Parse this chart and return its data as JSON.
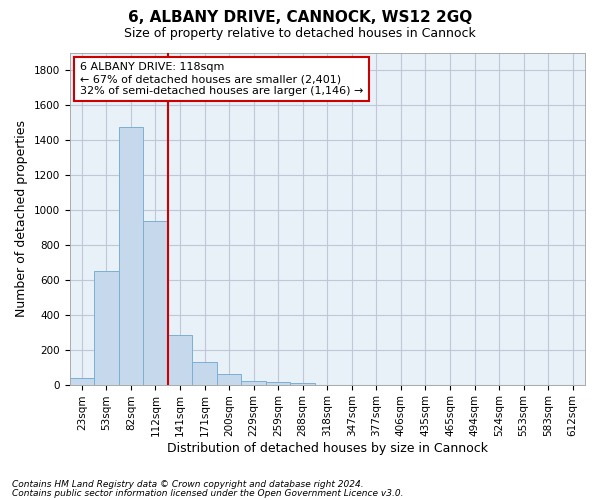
{
  "title": "6, ALBANY DRIVE, CANNOCK, WS12 2GQ",
  "subtitle": "Size of property relative to detached houses in Cannock",
  "xlabel": "Distribution of detached houses by size in Cannock",
  "ylabel": "Number of detached properties",
  "footnote1": "Contains HM Land Registry data © Crown copyright and database right 2024.",
  "footnote2": "Contains public sector information licensed under the Open Government Licence v3.0.",
  "categories": [
    "23sqm",
    "53sqm",
    "82sqm",
    "112sqm",
    "141sqm",
    "171sqm",
    "200sqm",
    "229sqm",
    "259sqm",
    "288sqm",
    "318sqm",
    "347sqm",
    "377sqm",
    "406sqm",
    "435sqm",
    "465sqm",
    "494sqm",
    "524sqm",
    "553sqm",
    "583sqm",
    "612sqm"
  ],
  "values": [
    38,
    648,
    1475,
    938,
    285,
    127,
    63,
    22,
    15,
    8,
    0,
    0,
    0,
    0,
    0,
    0,
    0,
    0,
    0,
    0,
    0
  ],
  "bar_color": "#c5d8ec",
  "bar_edge_color": "#7bafd4",
  "vline_x": 3.5,
  "vline_color": "#cc0000",
  "annotation_line1": "6 ALBANY DRIVE: 118sqm",
  "annotation_line2": "← 67% of detached houses are smaller (2,401)",
  "annotation_line3": "32% of semi-detached houses are larger (1,146) →",
  "annotation_box_color": "#ffffff",
  "annotation_box_edge_color": "#cc0000",
  "ylim": [
    0,
    1900
  ],
  "yticks": [
    0,
    200,
    400,
    600,
    800,
    1000,
    1200,
    1400,
    1600,
    1800
  ],
  "background_color": "#ffffff",
  "plot_bg_color": "#e8f0f8",
  "grid_color": "#c0c8d8",
  "title_fontsize": 11,
  "subtitle_fontsize": 9,
  "axis_label_fontsize": 9,
  "tick_fontsize": 7.5,
  "annotation_fontsize": 8,
  "footnote_fontsize": 6.5
}
